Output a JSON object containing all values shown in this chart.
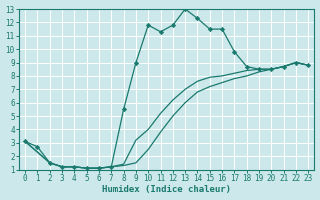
{
  "xlabel": "Humidex (Indice chaleur)",
  "xlim": [
    -0.5,
    23.5
  ],
  "ylim": [
    1,
    13
  ],
  "xticks": [
    0,
    1,
    2,
    3,
    4,
    5,
    6,
    7,
    8,
    9,
    10,
    11,
    12,
    13,
    14,
    15,
    16,
    17,
    18,
    19,
    20,
    21,
    22,
    23
  ],
  "yticks": [
    1,
    2,
    3,
    4,
    5,
    6,
    7,
    8,
    9,
    10,
    11,
    12,
    13
  ],
  "bg_color": "#cce8eb",
  "line_color": "#1a7a6e",
  "main_x": [
    0,
    1,
    2,
    3,
    4,
    5,
    6,
    7,
    8,
    9,
    10,
    11,
    12,
    13,
    14,
    15,
    16,
    17,
    18,
    19,
    20,
    21,
    22,
    23
  ],
  "main_y": [
    3.1,
    2.7,
    1.5,
    1.2,
    1.2,
    1.1,
    1.1,
    1.2,
    5.5,
    9.0,
    11.8,
    11.3,
    11.8,
    13.0,
    12.3,
    11.5,
    11.5,
    9.8,
    8.7,
    8.5,
    8.5,
    8.7,
    9.0,
    8.8
  ],
  "line2_x": [
    0,
    2,
    3,
    4,
    5,
    6,
    7,
    8,
    9,
    10,
    11,
    12,
    13,
    14,
    15,
    16,
    17,
    18,
    19,
    20,
    21,
    22,
    23
  ],
  "line2_y": [
    3.1,
    1.5,
    1.2,
    1.2,
    1.1,
    1.1,
    1.2,
    1.3,
    1.5,
    2.5,
    3.8,
    5.0,
    6.0,
    6.8,
    7.2,
    7.5,
    7.8,
    8.0,
    8.3,
    8.5,
    8.7,
    9.0,
    8.8
  ],
  "line3_x": [
    0,
    2,
    3,
    4,
    5,
    6,
    7,
    8,
    9,
    10,
    11,
    12,
    13,
    14,
    15,
    16,
    17,
    18,
    19,
    20,
    21,
    22,
    23
  ],
  "line3_y": [
    3.1,
    1.5,
    1.2,
    1.2,
    1.1,
    1.1,
    1.2,
    1.4,
    3.2,
    4.0,
    5.2,
    6.2,
    7.0,
    7.6,
    7.9,
    8.0,
    8.2,
    8.4,
    8.5,
    8.5,
    8.7,
    9.0,
    8.8
  ]
}
